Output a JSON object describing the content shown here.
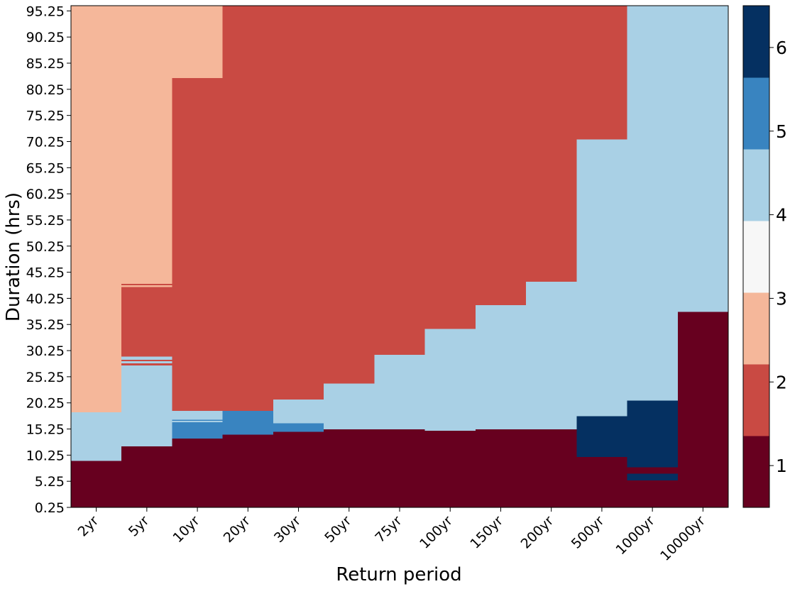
{
  "chart_data": {
    "type": "heatmap",
    "xlabel": "Return period",
    "ylabel": "Duration (hrs)",
    "categories": [
      "2yr",
      "5yr",
      "10yr",
      "20yr",
      "30yr",
      "50yr",
      "75yr",
      "100yr",
      "150yr",
      "200yr",
      "500yr",
      "1000yr",
      "10000yr"
    ],
    "ylim": [
      0.25,
      96.25
    ],
    "yticks": [
      "0.25",
      "5.25",
      "10.25",
      "15.25",
      "20.25",
      "25.25",
      "30.25",
      "35.25",
      "40.25",
      "45.25",
      "50.25",
      "55.25",
      "60.25",
      "65.25",
      "70.25",
      "75.25",
      "80.25",
      "85.25",
      "90.25",
      "95.25"
    ],
    "colorbar": {
      "ticks": [
        "1",
        "2",
        "3",
        "4",
        "5",
        "6"
      ],
      "range": [
        0.5,
        6.5
      ],
      "levels": [
        {
          "from": 0.5,
          "to": 1.5,
          "color": "#67001f"
        },
        {
          "from": 1.5,
          "to": 2.5,
          "color": "#c94a43"
        },
        {
          "from": 2.5,
          "to": 3.5,
          "color": "#f5b79a"
        },
        {
          "from": 3.5,
          "to": 4.5,
          "color": "#f7f7f7"
        },
        {
          "from": 4.5,
          "to": 5.5,
          "color": "#a9d0e5"
        },
        {
          "from": 5.5,
          "to": 6.5,
          "color": "#3984c0"
        }
      ],
      "top_color": "#053061"
    },
    "colors": {
      "1": "#67001f",
      "2": "#c94a43",
      "3": "#f5b79a",
      "4": "#a9d0e5",
      "5": "#3984c0",
      "6": "#053061"
    },
    "columns": [
      {
        "label": "2yr",
        "segments": [
          [
            0.25,
            9.25,
            1
          ],
          [
            9.25,
            18.5,
            4
          ],
          [
            18.5,
            96.25,
            3
          ]
        ]
      },
      {
        "label": "5yr",
        "segments": [
          [
            0.25,
            12.0,
            1
          ],
          [
            12.0,
            27.5,
            4
          ],
          [
            27.5,
            27.9,
            2
          ],
          [
            27.9,
            28.3,
            4
          ],
          [
            28.3,
            28.6,
            2
          ],
          [
            28.6,
            29.2,
            4
          ],
          [
            29.2,
            42.5,
            2
          ],
          [
            42.5,
            42.8,
            3
          ],
          [
            42.8,
            43.1,
            2
          ],
          [
            43.1,
            96.25,
            3
          ]
        ]
      },
      {
        "label": "10yr",
        "segments": [
          [
            0.25,
            13.5,
            1
          ],
          [
            13.5,
            16.6,
            5
          ],
          [
            16.6,
            16.9,
            4
          ],
          [
            16.9,
            17.1,
            5
          ],
          [
            17.1,
            18.8,
            4
          ],
          [
            18.8,
            82.5,
            2
          ],
          [
            82.5,
            96.25,
            3
          ]
        ]
      },
      {
        "label": "20yr",
        "segments": [
          [
            0.25,
            14.25,
            1
          ],
          [
            14.25,
            18.8,
            5
          ],
          [
            18.8,
            96.25,
            2
          ]
        ]
      },
      {
        "label": "30yr",
        "segments": [
          [
            0.25,
            14.8,
            1
          ],
          [
            14.8,
            16.4,
            5
          ],
          [
            16.4,
            21.0,
            4
          ],
          [
            21.0,
            96.25,
            2
          ]
        ]
      },
      {
        "label": "50yr",
        "segments": [
          [
            0.25,
            15.25,
            1
          ],
          [
            15.25,
            24.0,
            4
          ],
          [
            24.0,
            96.25,
            2
          ]
        ]
      },
      {
        "label": "75yr",
        "segments": [
          [
            0.25,
            15.25,
            1
          ],
          [
            15.25,
            29.5,
            4
          ],
          [
            29.5,
            96.25,
            2
          ]
        ]
      },
      {
        "label": "100yr",
        "segments": [
          [
            0.25,
            15.0,
            1
          ],
          [
            15.0,
            34.5,
            4
          ],
          [
            34.5,
            96.25,
            2
          ]
        ]
      },
      {
        "label": "150yr",
        "segments": [
          [
            0.25,
            15.25,
            1
          ],
          [
            15.25,
            39.0,
            4
          ],
          [
            39.0,
            96.25,
            2
          ]
        ]
      },
      {
        "label": "200yr",
        "segments": [
          [
            0.25,
            15.25,
            1
          ],
          [
            15.25,
            43.5,
            4
          ],
          [
            43.5,
            96.25,
            2
          ]
        ]
      },
      {
        "label": "500yr",
        "segments": [
          [
            0.25,
            10.0,
            1
          ],
          [
            10.0,
            17.75,
            6
          ],
          [
            17.75,
            70.75,
            4
          ],
          [
            70.75,
            96.25,
            2
          ]
        ]
      },
      {
        "label": "1000yr",
        "segments": [
          [
            0.25,
            5.5,
            1
          ],
          [
            5.5,
            6.75,
            6
          ],
          [
            6.75,
            8.0,
            1
          ],
          [
            8.0,
            20.75,
            6
          ],
          [
            20.75,
            96.25,
            4
          ]
        ]
      },
      {
        "label": "10000yr",
        "segments": [
          [
            0.25,
            37.75,
            1
          ],
          [
            37.75,
            96.25,
            4
          ]
        ]
      }
    ]
  }
}
